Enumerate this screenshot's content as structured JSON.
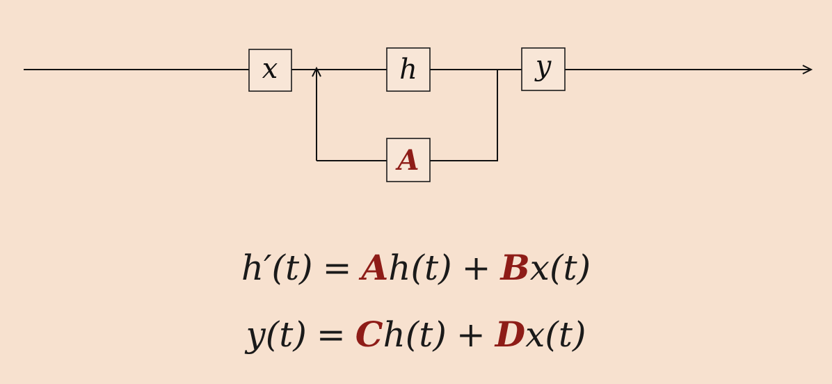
{
  "colors": {
    "background": "#f7e1cf",
    "accent": "#8e1c17",
    "ink": "#111111"
  },
  "diagram": {
    "nodes": {
      "x": "x",
      "h": "h",
      "y": "y",
      "A": "A"
    }
  },
  "equations": {
    "state": {
      "lhs": "h′(t)",
      "equals": "=",
      "coef_a": "A",
      "term_a": "h(t)",
      "plus": "+",
      "coef_b": "B",
      "term_b": "x(t)"
    },
    "output": {
      "lhs": "y(t)",
      "equals": "=",
      "coef_c": "C",
      "term_c": "h(t)",
      "plus": "+",
      "coef_d": "D",
      "term_d": "x(t)"
    }
  }
}
